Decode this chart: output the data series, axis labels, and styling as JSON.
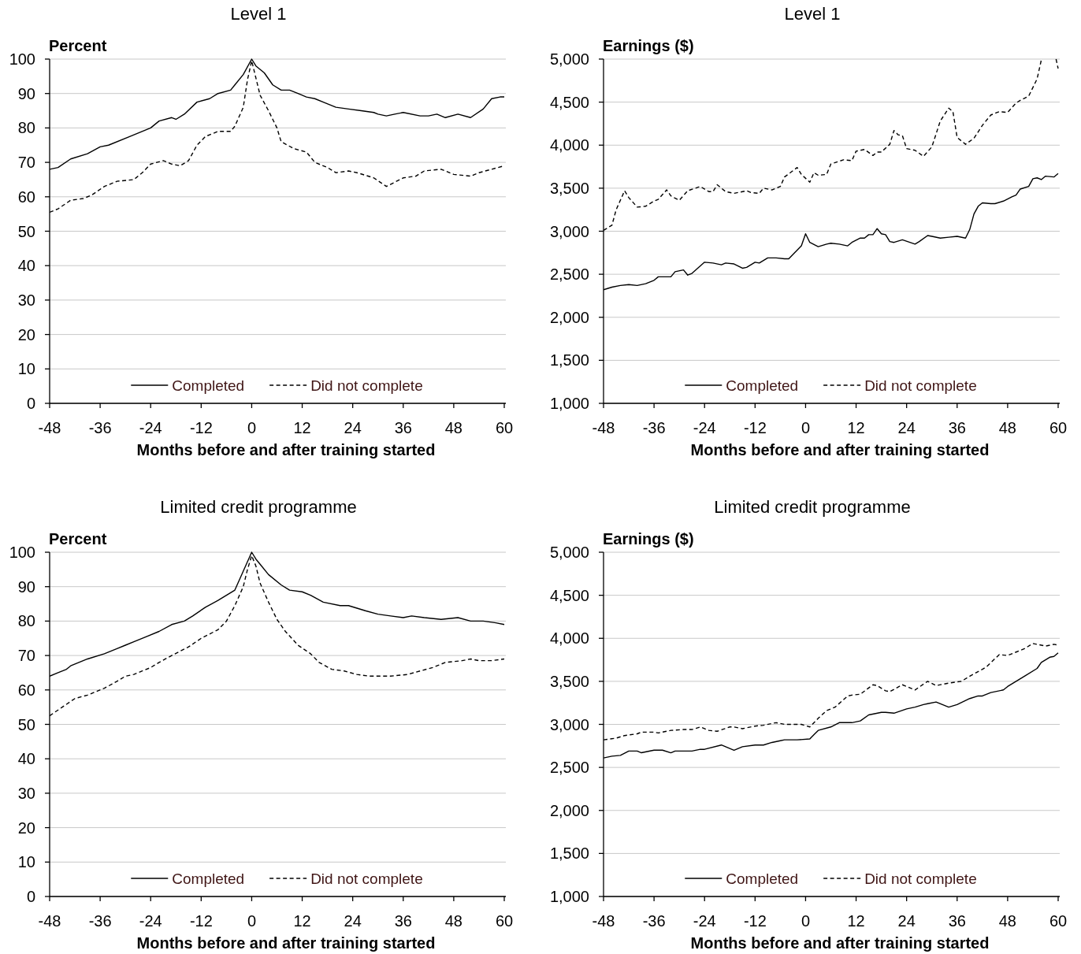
{
  "chart_data": [
    {
      "type": "line",
      "title": "Level 1",
      "ylabel": "Percent",
      "xlabel": "Months before and after training started",
      "xlim": [
        -48,
        60
      ],
      "xticks": [
        -48,
        -36,
        -24,
        -12,
        0,
        12,
        24,
        36,
        48,
        60
      ],
      "ylim": [
        0,
        100
      ],
      "yticks": [
        0,
        10,
        20,
        30,
        40,
        50,
        60,
        70,
        80,
        90,
        100
      ],
      "grid": "y",
      "legend": "bottom",
      "series": [
        {
          "name": "Completed",
          "color": "#000000",
          "line_style": "solid",
          "x": [
            -48,
            -46,
            -43,
            -39,
            -36,
            -34,
            -29,
            -24,
            -22,
            -19,
            -18,
            -16,
            -13,
            -10,
            -8,
            -5,
            -4,
            -2,
            0,
            1,
            3,
            5,
            7,
            9,
            11,
            13,
            15,
            17,
            20,
            23,
            26,
            29,
            30,
            32,
            34,
            36,
            40,
            42,
            44,
            46,
            49,
            52,
            55,
            57,
            59,
            60
          ],
          "values": [
            68,
            68.5,
            71,
            72.5,
            74.5,
            75,
            77.5,
            80,
            82,
            83,
            82.5,
            84,
            87.5,
            88.5,
            90,
            91,
            92.5,
            95.5,
            100,
            98,
            96,
            92.5,
            91,
            91,
            90,
            89,
            88.5,
            87.5,
            86,
            85.5,
            85,
            84.5,
            84,
            83.5,
            84,
            84.5,
            83.5,
            83.5,
            84,
            83,
            84,
            83,
            85.5,
            88.5,
            89,
            89
          ]
        },
        {
          "name": "Did not complete",
          "color": "#000000",
          "line_style": "dashed",
          "x": [
            -48,
            -46,
            -43,
            -40,
            -38,
            -35,
            -32,
            -28,
            -26,
            -24,
            -21,
            -19,
            -17,
            -15,
            -13,
            -11,
            -8,
            -5,
            -4,
            -2,
            -1,
            0,
            1,
            2,
            4,
            6,
            7,
            10,
            13,
            15,
            18,
            20,
            23,
            25,
            29,
            32,
            36,
            39,
            41,
            45,
            48,
            52,
            54,
            57,
            60
          ],
          "values": [
            55.5,
            56.5,
            59,
            59.5,
            60.5,
            63,
            64.5,
            65,
            67,
            69.5,
            70.5,
            69.5,
            69,
            70.5,
            75,
            77.5,
            79,
            79,
            80.5,
            86,
            94,
            99.5,
            94.5,
            89.5,
            85,
            80,
            76,
            74,
            73,
            70,
            68.5,
            67,
            67.5,
            67,
            65.5,
            63,
            65.5,
            66,
            67.5,
            68,
            66.5,
            66,
            67,
            68,
            69
          ]
        }
      ]
    },
    {
      "type": "line",
      "title": "Level 1",
      "ylabel": "Earnings ($)",
      "xlabel": "Months before and after training started",
      "xlim": [
        -48,
        60
      ],
      "xticks": [
        -48,
        -36,
        -24,
        -12,
        0,
        12,
        24,
        36,
        48,
        60
      ],
      "ylim": [
        1000,
        5000
      ],
      "yticks": [
        {
          "value": 1000,
          "label": "1,000"
        },
        {
          "value": 1500,
          "label": "1,500"
        },
        {
          "value": 2000,
          "label": "2,000"
        },
        {
          "value": 2500,
          "label": "2,500"
        },
        {
          "value": 3000,
          "label": "3,000"
        },
        {
          "value": 3500,
          "label": "3,500"
        },
        {
          "value": 4000,
          "label": "4,000"
        },
        {
          "value": 4500,
          "label": "4,500"
        },
        {
          "value": 5000,
          "label": "5,000"
        }
      ],
      "grid": "y",
      "legend": "bottom",
      "series": [
        {
          "name": "Completed",
          "color": "#000000",
          "line_style": "solid",
          "x": [
            -48,
            -46,
            -44,
            -42,
            -40,
            -38,
            -36,
            -35,
            -32,
            -31,
            -29,
            -28,
            -27,
            -24,
            -22,
            -20,
            -19,
            -17,
            -15,
            -14,
            -12,
            -11,
            -9,
            -7,
            -5,
            -4,
            -1,
            0,
            1,
            3,
            5,
            6,
            8,
            10,
            11,
            13,
            14,
            15,
            16,
            17,
            18,
            19,
            20,
            21,
            23,
            26,
            27,
            29,
            30,
            32,
            34,
            36,
            38,
            39,
            40,
            41,
            42,
            44,
            45,
            47,
            49,
            50,
            51,
            53,
            54,
            55,
            56,
            57,
            59,
            60
          ],
          "values": [
            2320,
            2350,
            2370,
            2380,
            2370,
            2390,
            2430,
            2470,
            2470,
            2530,
            2550,
            2490,
            2510,
            2640,
            2630,
            2610,
            2630,
            2620,
            2570,
            2580,
            2640,
            2630,
            2690,
            2690,
            2680,
            2680,
            2830,
            2970,
            2870,
            2820,
            2850,
            2860,
            2850,
            2830,
            2870,
            2920,
            2920,
            2960,
            2960,
            3030,
            2970,
            2960,
            2880,
            2870,
            2900,
            2850,
            2880,
            2950,
            2940,
            2920,
            2930,
            2940,
            2920,
            3020,
            3200,
            3290,
            3330,
            3320,
            3320,
            3350,
            3400,
            3420,
            3490,
            3520,
            3610,
            3620,
            3600,
            3640,
            3630,
            3670
          ]
        },
        {
          "name": "Did not complete",
          "color": "#000000",
          "line_style": "dashed",
          "x": [
            -48,
            -46,
            -45,
            -43,
            -42,
            -40,
            -38,
            -36,
            -35,
            -33,
            -32,
            -30,
            -28,
            -25,
            -23,
            -22,
            -21,
            -19,
            -17,
            -14,
            -13,
            -11,
            -10,
            -8,
            -6,
            -5,
            -2,
            -1,
            1,
            2,
            3,
            5,
            6,
            9,
            11,
            12,
            14,
            16,
            17,
            18,
            20,
            21,
            22,
            23,
            24,
            26,
            28,
            30,
            32,
            34,
            35,
            36,
            38,
            40,
            42,
            44,
            46,
            48,
            50,
            51,
            53,
            55,
            56,
            57,
            58,
            59.5,
            60
          ],
          "values": [
            3010,
            3070,
            3250,
            3470,
            3390,
            3280,
            3290,
            3350,
            3370,
            3480,
            3410,
            3360,
            3470,
            3520,
            3460,
            3460,
            3540,
            3460,
            3440,
            3470,
            3450,
            3440,
            3500,
            3480,
            3520,
            3630,
            3740,
            3660,
            3570,
            3680,
            3650,
            3660,
            3780,
            3830,
            3820,
            3930,
            3950,
            3880,
            3920,
            3920,
            4010,
            4170,
            4120,
            4110,
            3960,
            3940,
            3870,
            3980,
            4280,
            4430,
            4390,
            4090,
            4010,
            4080,
            4230,
            4350,
            4390,
            4380,
            4490,
            4520,
            4570,
            4770,
            4990,
            null,
            null,
            5000,
            4890
          ]
        }
      ]
    },
    {
      "type": "line",
      "title": "Limited credit programme",
      "ylabel": "Percent",
      "xlabel": "Months before and after training started",
      "xlim": [
        -48,
        60
      ],
      "xticks": [
        -48,
        -36,
        -24,
        -12,
        0,
        12,
        24,
        36,
        48,
        60
      ],
      "ylim": [
        0,
        100
      ],
      "yticks": [
        0,
        10,
        20,
        30,
        40,
        50,
        60,
        70,
        80,
        90,
        100
      ],
      "grid": "y",
      "legend": "bottom",
      "series": [
        {
          "name": "Completed",
          "color": "#000000",
          "line_style": "solid",
          "x": [
            -48,
            -46,
            -44,
            -43,
            -39,
            -35,
            -32,
            -30,
            -28,
            -25,
            -22,
            -19,
            -16,
            -14,
            -11,
            -8,
            -6,
            -4,
            -2,
            0,
            1,
            2,
            4,
            7,
            9,
            12,
            14,
            17,
            21,
            23,
            27,
            30,
            33,
            36,
            38,
            41,
            45,
            49,
            52,
            55,
            58,
            60
          ],
          "values": [
            64,
            65,
            66,
            67,
            69,
            70.5,
            72,
            73,
            74,
            75.5,
            77,
            79,
            80,
            81.5,
            84,
            86,
            87.5,
            89,
            94.5,
            100,
            98,
            96.5,
            93.5,
            90.5,
            89,
            88.5,
            87.5,
            85.5,
            84.5,
            84.5,
            83,
            82,
            81.5,
            81,
            81.5,
            81,
            80.5,
            81,
            80,
            80,
            79.5,
            79
          ]
        },
        {
          "name": "Did not complete",
          "color": "#000000",
          "line_style": "dashed",
          "x": [
            -48,
            -45,
            -42,
            -39,
            -35,
            -32,
            -30,
            -28,
            -24,
            -22,
            -19,
            -15,
            -12,
            -8,
            -6,
            -4,
            -2,
            -1,
            0,
            1,
            2,
            4,
            6,
            8,
            11,
            14,
            16,
            19,
            22,
            25,
            28,
            33,
            37,
            40,
            43,
            46,
            50,
            52,
            54,
            57,
            60
          ],
          "values": [
            52.5,
            55,
            57.5,
            58.5,
            60.5,
            62.5,
            64,
            64.5,
            66.5,
            68,
            70,
            72.5,
            75,
            77.5,
            80,
            84.5,
            90,
            95,
            99,
            96,
            91,
            85.5,
            80.5,
            77,
            73,
            70.5,
            68,
            66,
            65.5,
            64.5,
            64,
            64,
            64.5,
            65.5,
            66.5,
            68,
            68.5,
            69,
            68.5,
            68.5,
            69
          ]
        }
      ]
    },
    {
      "type": "line",
      "title": "Limited credit programme",
      "ylabel": "Earnings ($)",
      "xlabel": "Months before and after training started",
      "xlim": [
        -48,
        60
      ],
      "xticks": [
        -48,
        -36,
        -24,
        -12,
        0,
        12,
        24,
        36,
        48,
        60
      ],
      "ylim": [
        1000,
        5000
      ],
      "yticks": [
        {
          "value": 1000,
          "label": "1,000"
        },
        {
          "value": 1500,
          "label": "1,500"
        },
        {
          "value": 2000,
          "label": "2,000"
        },
        {
          "value": 2500,
          "label": "2,500"
        },
        {
          "value": 3000,
          "label": "3,000"
        },
        {
          "value": 3500,
          "label": "3,500"
        },
        {
          "value": 4000,
          "label": "4,000"
        },
        {
          "value": 4500,
          "label": "4,500"
        },
        {
          "value": 5000,
          "label": "5,000"
        }
      ],
      "grid": "y",
      "legend": "bottom",
      "series": [
        {
          "name": "Completed",
          "color": "#000000",
          "line_style": "solid",
          "x": [
            -48,
            -46,
            -44,
            -42,
            -40,
            -39,
            -36,
            -34,
            -32,
            -31,
            -27,
            -25,
            -24,
            -20,
            -17,
            -15,
            -12,
            -10,
            -8,
            -6,
            -5,
            -2,
            1,
            2,
            3,
            6,
            8,
            11,
            13,
            15,
            18,
            19,
            21,
            24,
            26,
            28,
            29,
            31,
            34,
            36,
            39,
            41,
            42,
            44,
            47,
            48,
            50,
            52,
            55,
            56,
            58,
            59,
            60
          ],
          "values": [
            2610,
            2630,
            2640,
            2690,
            2690,
            2670,
            2700,
            2700,
            2670,
            2690,
            2690,
            2710,
            2710,
            2760,
            2700,
            2740,
            2760,
            2760,
            2790,
            2810,
            2820,
            2820,
            2830,
            2880,
            2930,
            2970,
            3020,
            3020,
            3040,
            3110,
            3140,
            3140,
            3130,
            3180,
            3200,
            3230,
            3240,
            3260,
            3200,
            3230,
            3300,
            3330,
            3330,
            3370,
            3400,
            3440,
            3500,
            3560,
            3650,
            3720,
            3780,
            3790,
            3830
          ]
        },
        {
          "name": "Did not complete",
          "color": "#000000",
          "line_style": "dashed",
          "x": [
            -48,
            -45,
            -43,
            -40,
            -39,
            -36,
            -35,
            -32,
            -29,
            -27,
            -25,
            -23,
            -21,
            -18,
            -17,
            -15,
            -12,
            -10,
            -7,
            -5,
            -3,
            -1,
            1,
            3,
            5,
            7,
            10,
            11,
            13,
            16,
            17,
            19,
            20,
            23,
            26,
            29,
            31,
            34,
            37,
            39,
            42,
            43,
            46,
            48,
            50,
            52,
            54,
            56,
            57,
            59,
            60
          ],
          "values": [
            2820,
            2840,
            2870,
            2890,
            2910,
            2910,
            2900,
            2930,
            2940,
            2940,
            2970,
            2930,
            2920,
            2970,
            2970,
            2950,
            2980,
            2990,
            3020,
            3000,
            3000,
            3000,
            2970,
            3070,
            3160,
            3200,
            3330,
            3340,
            3350,
            3460,
            3450,
            3390,
            3380,
            3460,
            3400,
            3500,
            3450,
            3480,
            3500,
            3560,
            3640,
            3670,
            3810,
            3800,
            3840,
            3880,
            3940,
            3920,
            3910,
            3930,
            3920
          ]
        }
      ]
    }
  ]
}
